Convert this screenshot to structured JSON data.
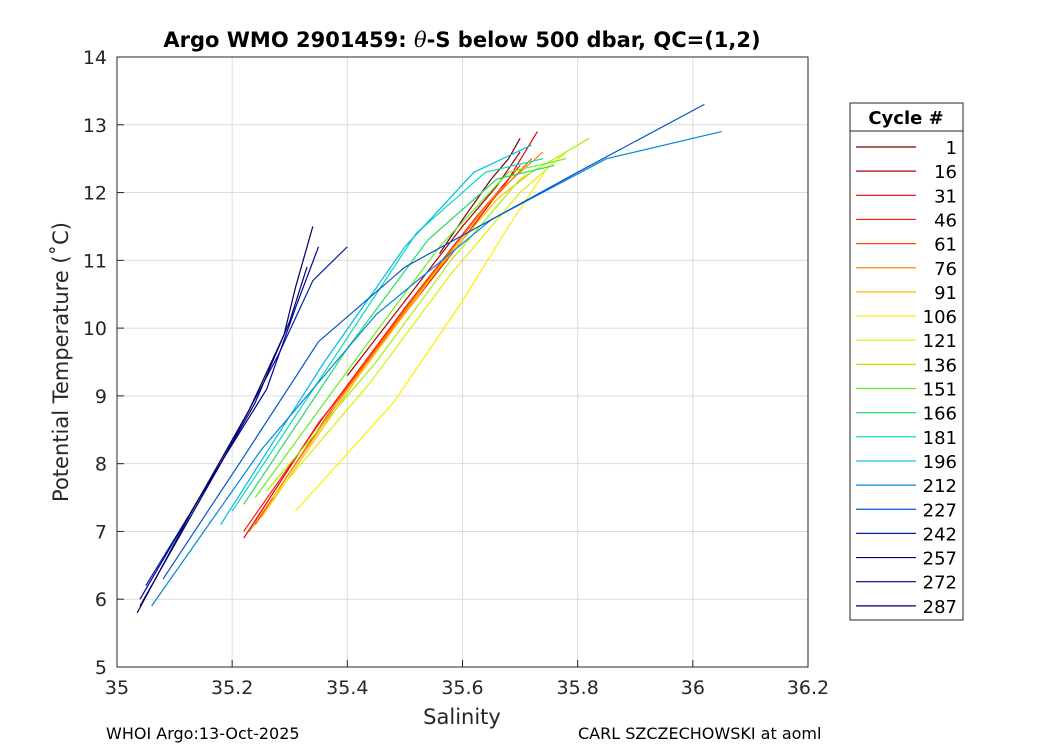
{
  "chart_data": {
    "type": "line",
    "title": "Argo WMO 2901459: θ-S below 500 dbar,  QC=(1,2)",
    "title_prefix": "Argo WMO 2901459: ",
    "title_theta": "θ",
    "title_suffix": "-S below 500 dbar,  QC=(1,2)",
    "xlabel": "Salinity",
    "ylabel": "Potential Temperature (˚C)",
    "xlim": [
      35,
      36.2
    ],
    "ylim": [
      5,
      14
    ],
    "xticks": [
      35,
      35.2,
      35.4,
      35.6,
      35.8,
      36,
      36.2
    ],
    "xtick_labels": [
      "35",
      "35.2",
      "35.4",
      "35.6",
      "35.8",
      "36",
      "36.2"
    ],
    "yticks": [
      5,
      6,
      7,
      8,
      9,
      10,
      11,
      12,
      13,
      14
    ],
    "ytick_labels": [
      "5",
      "6",
      "7",
      "8",
      "9",
      "10",
      "11",
      "12",
      "13",
      "14"
    ],
    "grid": true,
    "legend_title": "Cycle #",
    "legend_position": "right-outside",
    "series": [
      {
        "name": "1",
        "color": "#7a0000",
        "points": [
          [
            35.56,
            11.1
          ],
          [
            35.6,
            11.6
          ],
          [
            35.65,
            12.2
          ],
          [
            35.68,
            12.5
          ],
          [
            35.7,
            12.8
          ]
        ]
      },
      {
        "name": "16",
        "color": "#b00000",
        "points": [
          [
            35.4,
            9.3
          ],
          [
            35.5,
            10.4
          ],
          [
            35.6,
            11.5
          ],
          [
            35.66,
            12.1
          ],
          [
            35.7,
            12.6
          ]
        ]
      },
      {
        "name": "31",
        "color": "#e60000",
        "points": [
          [
            35.22,
            6.9
          ],
          [
            35.35,
            8.6
          ],
          [
            35.48,
            10.0
          ],
          [
            35.6,
            11.3
          ],
          [
            35.68,
            12.2
          ],
          [
            35.73,
            12.9
          ]
        ]
      },
      {
        "name": "46",
        "color": "#ff1a00",
        "points": [
          [
            35.22,
            7.0
          ],
          [
            35.36,
            8.7
          ],
          [
            35.5,
            10.3
          ],
          [
            35.62,
            11.6
          ],
          [
            35.7,
            12.4
          ]
        ]
      },
      {
        "name": "61",
        "color": "#ff5000",
        "points": [
          [
            35.24,
            7.1
          ],
          [
            35.38,
            8.9
          ],
          [
            35.52,
            10.5
          ],
          [
            35.63,
            11.7
          ],
          [
            35.72,
            12.5
          ]
        ]
      },
      {
        "name": "76",
        "color": "#ff8800",
        "points": [
          [
            35.23,
            7.0
          ],
          [
            35.4,
            9.1
          ],
          [
            35.54,
            10.7
          ],
          [
            35.66,
            12.0
          ],
          [
            35.74,
            12.6
          ]
        ]
      },
      {
        "name": "91",
        "color": "#ffbb00",
        "points": [
          [
            35.25,
            7.2
          ],
          [
            35.42,
            9.3
          ],
          [
            35.56,
            10.9
          ],
          [
            35.66,
            11.9
          ],
          [
            35.72,
            12.3
          ]
        ]
      },
      {
        "name": "106",
        "color": "#ffee00",
        "points": [
          [
            35.31,
            7.3
          ],
          [
            35.48,
            8.9
          ],
          [
            35.6,
            10.4
          ],
          [
            35.68,
            11.5
          ],
          [
            35.75,
            12.4
          ]
        ]
      },
      {
        "name": "121",
        "color": "#ddf000",
        "points": [
          [
            35.27,
            7.5
          ],
          [
            35.44,
            9.2
          ],
          [
            35.58,
            10.8
          ],
          [
            35.7,
            12.0
          ],
          [
            35.78,
            12.6
          ]
        ]
      },
      {
        "name": "136",
        "color": "#aaf000",
        "points": [
          [
            35.26,
            7.6
          ],
          [
            35.45,
            9.5
          ],
          [
            35.58,
            11.0
          ],
          [
            35.7,
            12.2
          ],
          [
            35.82,
            12.8
          ]
        ]
      },
      {
        "name": "151",
        "color": "#66ee22",
        "points": [
          [
            35.24,
            7.5
          ],
          [
            35.42,
            9.6
          ],
          [
            35.56,
            11.2
          ],
          [
            35.68,
            12.3
          ],
          [
            35.78,
            12.5
          ]
        ]
      },
      {
        "name": "166",
        "color": "#22dd66",
        "points": [
          [
            35.22,
            7.4
          ],
          [
            35.4,
            9.7
          ],
          [
            35.54,
            11.3
          ],
          [
            35.66,
            12.2
          ],
          [
            35.76,
            12.4
          ]
        ]
      },
      {
        "name": "181",
        "color": "#00ddbb",
        "points": [
          [
            35.2,
            7.3
          ],
          [
            35.38,
            9.6
          ],
          [
            35.52,
            11.4
          ],
          [
            35.64,
            12.3
          ],
          [
            35.74,
            12.5
          ]
        ]
      },
      {
        "name": "196",
        "color": "#00bbee",
        "points": [
          [
            35.18,
            7.1
          ],
          [
            35.36,
            9.5
          ],
          [
            35.5,
            11.2
          ],
          [
            35.62,
            12.3
          ],
          [
            35.72,
            12.7
          ]
        ]
      },
      {
        "name": "212",
        "color": "#0088dd",
        "points": [
          [
            35.06,
            5.9
          ],
          [
            35.25,
            8.2
          ],
          [
            35.45,
            10.2
          ],
          [
            35.65,
            11.6
          ],
          [
            35.85,
            12.5
          ],
          [
            36.05,
            12.9
          ]
        ]
      },
      {
        "name": "227",
        "color": "#0055cc",
        "points": [
          [
            35.08,
            6.3
          ],
          [
            35.22,
            8.1
          ],
          [
            35.35,
            9.8
          ],
          [
            35.5,
            10.9
          ],
          [
            35.8,
            12.3
          ],
          [
            36.02,
            13.3
          ]
        ]
      },
      {
        "name": "242",
        "color": "#0022aa",
        "points": [
          [
            35.05,
            6.2
          ],
          [
            35.18,
            8.0
          ],
          [
            35.28,
            9.6
          ],
          [
            35.34,
            10.7
          ],
          [
            35.4,
            11.2
          ]
        ]
      },
      {
        "name": "257",
        "color": "#000099",
        "points": [
          [
            35.04,
            6.0
          ],
          [
            35.15,
            7.6
          ],
          [
            35.26,
            9.1
          ],
          [
            35.31,
            10.3
          ],
          [
            35.35,
            11.2
          ]
        ]
      },
      {
        "name": "272",
        "color": "#000077",
        "points": [
          [
            35.04,
            5.9
          ],
          [
            35.14,
            7.4
          ],
          [
            35.24,
            8.9
          ],
          [
            35.3,
            10.1
          ],
          [
            35.33,
            10.9
          ]
        ]
      },
      {
        "name": "287",
        "color": "#000060",
        "points": [
          [
            35.035,
            5.8
          ],
          [
            35.13,
            7.3
          ],
          [
            35.23,
            8.8
          ],
          [
            35.29,
            9.9
          ],
          [
            35.31,
            10.6
          ],
          [
            35.34,
            11.5
          ]
        ]
      }
    ]
  },
  "footer": {
    "left": "WHOI Argo:13-Oct-2025",
    "right": "CARL SZCZECHOWSKI at aoml"
  }
}
